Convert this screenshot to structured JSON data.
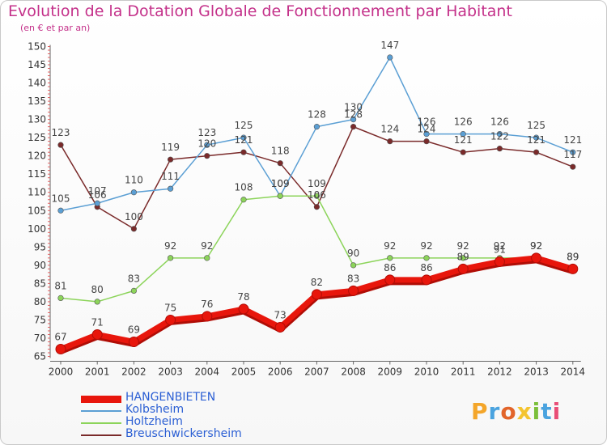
{
  "title": "Evolution de la Dotation Globale de Fonctionnement par Habitant",
  "subtitle": "(en € et par an)",
  "logo": {
    "letters": [
      "P",
      "r",
      "o",
      "x",
      "i",
      "t",
      "i"
    ],
    "colors": [
      "#f4a62a",
      "#4aa3df",
      "#e2642a",
      "#f4c430",
      "#7bbf3a",
      "#4aa3df",
      "#e94e77"
    ]
  },
  "chart_data": {
    "type": "line",
    "title": "Evolution de la Dotation Globale de Fonctionnement par Habitant",
    "subtitle": "(en € et par an)",
    "xlabel": "",
    "ylabel": "",
    "x": [
      "2000",
      "2001",
      "2002",
      "2003",
      "2004",
      "2005",
      "2006",
      "2007",
      "2008",
      "2009",
      "2010",
      "2011",
      "2012",
      "2013",
      "2014"
    ],
    "yticks": [
      65,
      70,
      75,
      80,
      85,
      90,
      95,
      100,
      105,
      110,
      115,
      120,
      125,
      130,
      135,
      140,
      145,
      150
    ],
    "ylim": [
      65,
      150
    ],
    "grid": false,
    "legend_position": "bottom-left",
    "series": [
      {
        "name": "HANGENBIETEN",
        "color": "#e8160c",
        "values": [
          67,
          71,
          69,
          75,
          76,
          78,
          73,
          82,
          83,
          86,
          86,
          89,
          91,
          92,
          89
        ]
      },
      {
        "name": "Kolbsheim",
        "color": "#5b9fd4",
        "values": [
          105,
          107,
          110,
          111,
          123,
          125,
          109,
          128,
          130,
          147,
          126,
          126,
          126,
          125,
          121
        ]
      },
      {
        "name": "Holtzheim",
        "color": "#8cd45a",
        "values": [
          81,
          80,
          83,
          92,
          92,
          108,
          109,
          109,
          90,
          92,
          92,
          92,
          92,
          92,
          89
        ]
      },
      {
        "name": "Breuschwickersheim",
        "color": "#7a2a2a",
        "values": [
          123,
          106,
          100,
          119,
          120,
          121,
          118,
          106,
          128,
          124,
          124,
          121,
          122,
          121,
          117
        ]
      }
    ]
  }
}
